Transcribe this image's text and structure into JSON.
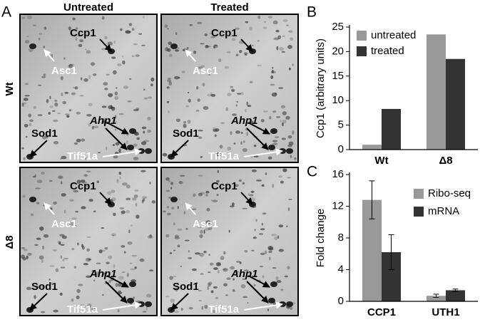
{
  "panel_a": {
    "label": "A",
    "columns": [
      "Untreated",
      "Treated"
    ],
    "rows": [
      "Wt",
      "Δ8"
    ],
    "annotations": [
      "Ccp1",
      "Asc1",
      "Ahp1",
      "Sod1",
      "Tif51a"
    ]
  },
  "chart_data": [
    {
      "type": "bar",
      "panel_label": "B",
      "y_label": "Ccp1 (arbitrary units)",
      "categories": [
        "Wt",
        "Δ8"
      ],
      "series": [
        {
          "name": "untreated",
          "color": "#999999",
          "values": [
            1,
            23.5
          ]
        },
        {
          "name": "treated",
          "color": "#333333",
          "values": [
            8.3,
            18.5
          ]
        }
      ],
      "ylim": [
        0,
        25
      ],
      "yticks": [
        0,
        5,
        10,
        15,
        20,
        25
      ]
    },
    {
      "type": "bar",
      "panel_label": "C",
      "y_label": "Fold change",
      "categories": [
        "CCP1",
        "UTH1"
      ],
      "series": [
        {
          "name": "Ribo-seq",
          "color": "#999999",
          "values": [
            12.8,
            0.7
          ],
          "errors": [
            2.4,
            0.2
          ]
        },
        {
          "name": "mRNA",
          "color": "#333333",
          "values": [
            6.2,
            1.4
          ],
          "errors": [
            2.2,
            0.15
          ]
        }
      ],
      "ylim": [
        0,
        16
      ],
      "yticks": [
        0,
        4,
        8,
        12,
        16
      ]
    }
  ]
}
